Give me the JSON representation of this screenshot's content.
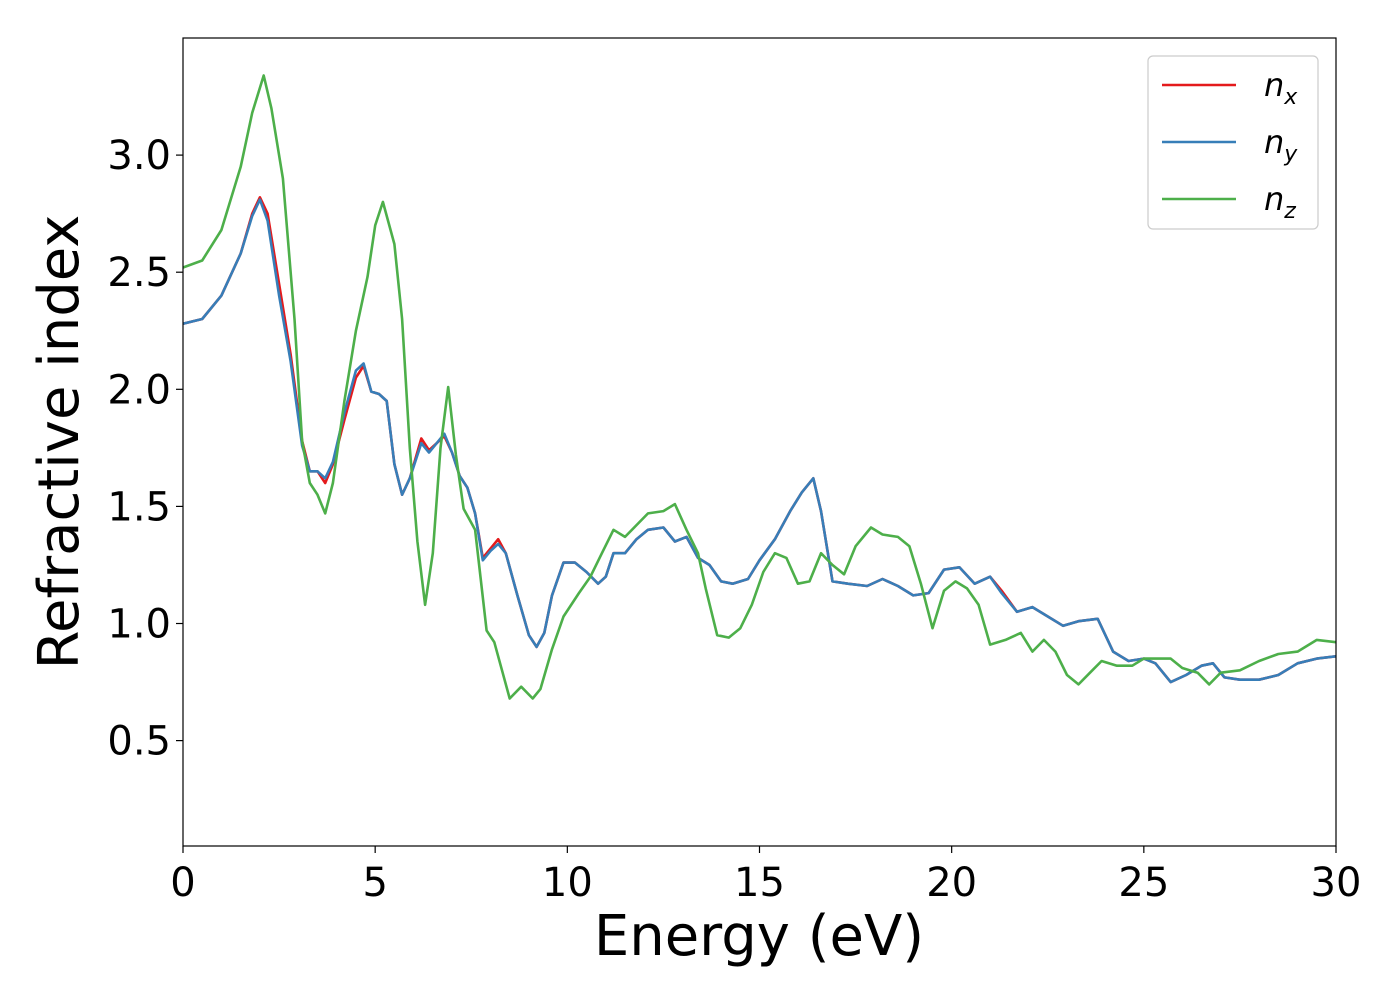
{
  "chart_data": {
    "type": "line",
    "title": "",
    "xlabel": "Energy (eV)",
    "ylabel": "Refractive index",
    "xlim": [
      0,
      30
    ],
    "ylim": [
      0.05,
      3.5
    ],
    "xticks": [
      0,
      5,
      10,
      15,
      20,
      25,
      30
    ],
    "xtick_labels": [
      "0",
      "5",
      "10",
      "15",
      "20",
      "25",
      "30"
    ],
    "yticks": [
      0.5,
      1.0,
      1.5,
      2.0,
      2.5,
      3.0
    ],
    "ytick_labels": [
      "0.5",
      "1.0",
      "1.5",
      "2.0",
      "2.5",
      "3.0"
    ],
    "grid": false,
    "legend_position": "top-right",
    "series": [
      {
        "name": "n_x",
        "label_base": "n",
        "label_sub": "x",
        "color": "#e41a1c",
        "points": [
          [
            0,
            2.28
          ],
          [
            0.5,
            2.3
          ],
          [
            1.0,
            2.4
          ],
          [
            1.5,
            2.58
          ],
          [
            1.8,
            2.75
          ],
          [
            2.0,
            2.82
          ],
          [
            2.2,
            2.75
          ],
          [
            2.5,
            2.45
          ],
          [
            2.8,
            2.15
          ],
          [
            3.1,
            1.78
          ],
          [
            3.3,
            1.65
          ],
          [
            3.5,
            1.65
          ],
          [
            3.7,
            1.6
          ],
          [
            3.9,
            1.68
          ],
          [
            4.2,
            1.87
          ],
          [
            4.5,
            2.05
          ],
          [
            4.7,
            2.1
          ],
          [
            4.9,
            1.99
          ],
          [
            5.1,
            1.98
          ],
          [
            5.3,
            1.95
          ],
          [
            5.5,
            1.68
          ],
          [
            5.7,
            1.55
          ],
          [
            5.9,
            1.62
          ],
          [
            6.2,
            1.79
          ],
          [
            6.4,
            1.74
          ],
          [
            6.6,
            1.77
          ],
          [
            6.8,
            1.8
          ],
          [
            7.0,
            1.73
          ],
          [
            7.2,
            1.63
          ],
          [
            7.4,
            1.58
          ],
          [
            7.6,
            1.47
          ],
          [
            7.8,
            1.28
          ],
          [
            8.0,
            1.32
          ],
          [
            8.2,
            1.36
          ],
          [
            8.4,
            1.3
          ],
          [
            8.7,
            1.12
          ],
          [
            9.0,
            0.95
          ],
          [
            9.2,
            0.9
          ],
          [
            9.4,
            0.96
          ],
          [
            9.6,
            1.12
          ],
          [
            9.9,
            1.26
          ],
          [
            10.2,
            1.26
          ],
          [
            10.5,
            1.22
          ],
          [
            10.8,
            1.17
          ],
          [
            11.0,
            1.2
          ],
          [
            11.2,
            1.3
          ],
          [
            11.5,
            1.3
          ],
          [
            11.8,
            1.36
          ],
          [
            12.1,
            1.4
          ],
          [
            12.5,
            1.41
          ],
          [
            12.8,
            1.35
          ],
          [
            13.1,
            1.37
          ],
          [
            13.4,
            1.28
          ],
          [
            13.7,
            1.25
          ],
          [
            14.0,
            1.18
          ],
          [
            14.3,
            1.17
          ],
          [
            14.7,
            1.19
          ],
          [
            15.0,
            1.27
          ],
          [
            15.4,
            1.36
          ],
          [
            15.8,
            1.48
          ],
          [
            16.1,
            1.56
          ],
          [
            16.4,
            1.62
          ],
          [
            16.6,
            1.48
          ],
          [
            16.9,
            1.18
          ],
          [
            17.3,
            1.17
          ],
          [
            17.8,
            1.16
          ],
          [
            18.2,
            1.19
          ],
          [
            18.6,
            1.16
          ],
          [
            19.0,
            1.12
          ],
          [
            19.4,
            1.13
          ],
          [
            19.8,
            1.23
          ],
          [
            20.2,
            1.24
          ],
          [
            20.6,
            1.17
          ],
          [
            21.0,
            1.2
          ],
          [
            21.3,
            1.14
          ],
          [
            21.7,
            1.05
          ],
          [
            22.1,
            1.07
          ],
          [
            22.5,
            1.03
          ],
          [
            22.9,
            0.99
          ],
          [
            23.3,
            1.01
          ],
          [
            23.8,
            1.02
          ],
          [
            24.2,
            0.88
          ],
          [
            24.6,
            0.84
          ],
          [
            25.0,
            0.85
          ],
          [
            25.3,
            0.83
          ],
          [
            25.7,
            0.75
          ],
          [
            26.1,
            0.78
          ],
          [
            26.5,
            0.82
          ],
          [
            26.8,
            0.83
          ],
          [
            27.1,
            0.77
          ],
          [
            27.5,
            0.76
          ],
          [
            28.0,
            0.76
          ],
          [
            28.5,
            0.78
          ],
          [
            29.0,
            0.83
          ],
          [
            29.5,
            0.85
          ],
          [
            30,
            0.86
          ]
        ]
      },
      {
        "name": "n_y",
        "label_base": "n",
        "label_sub": "y",
        "color": "#377eb8",
        "points": [
          [
            0,
            2.28
          ],
          [
            0.5,
            2.3
          ],
          [
            1.0,
            2.4
          ],
          [
            1.5,
            2.58
          ],
          [
            1.8,
            2.74
          ],
          [
            2.0,
            2.81
          ],
          [
            2.2,
            2.72
          ],
          [
            2.5,
            2.4
          ],
          [
            2.8,
            2.12
          ],
          [
            3.1,
            1.76
          ],
          [
            3.3,
            1.65
          ],
          [
            3.5,
            1.65
          ],
          [
            3.7,
            1.62
          ],
          [
            3.9,
            1.69
          ],
          [
            4.2,
            1.9
          ],
          [
            4.5,
            2.08
          ],
          [
            4.7,
            2.11
          ],
          [
            4.9,
            1.99
          ],
          [
            5.1,
            1.98
          ],
          [
            5.3,
            1.95
          ],
          [
            5.5,
            1.68
          ],
          [
            5.7,
            1.55
          ],
          [
            5.9,
            1.62
          ],
          [
            6.2,
            1.77
          ],
          [
            6.4,
            1.73
          ],
          [
            6.6,
            1.77
          ],
          [
            6.8,
            1.81
          ],
          [
            7.0,
            1.73
          ],
          [
            7.2,
            1.63
          ],
          [
            7.4,
            1.58
          ],
          [
            7.6,
            1.47
          ],
          [
            7.8,
            1.27
          ],
          [
            8.0,
            1.31
          ],
          [
            8.2,
            1.34
          ],
          [
            8.4,
            1.3
          ],
          [
            8.7,
            1.12
          ],
          [
            9.0,
            0.95
          ],
          [
            9.2,
            0.9
          ],
          [
            9.4,
            0.96
          ],
          [
            9.6,
            1.12
          ],
          [
            9.9,
            1.26
          ],
          [
            10.2,
            1.26
          ],
          [
            10.5,
            1.22
          ],
          [
            10.8,
            1.17
          ],
          [
            11.0,
            1.2
          ],
          [
            11.2,
            1.3
          ],
          [
            11.5,
            1.3
          ],
          [
            11.8,
            1.36
          ],
          [
            12.1,
            1.4
          ],
          [
            12.5,
            1.41
          ],
          [
            12.8,
            1.35
          ],
          [
            13.1,
            1.37
          ],
          [
            13.4,
            1.28
          ],
          [
            13.7,
            1.25
          ],
          [
            14.0,
            1.18
          ],
          [
            14.3,
            1.17
          ],
          [
            14.7,
            1.19
          ],
          [
            15.0,
            1.27
          ],
          [
            15.4,
            1.36
          ],
          [
            15.8,
            1.48
          ],
          [
            16.1,
            1.56
          ],
          [
            16.4,
            1.62
          ],
          [
            16.6,
            1.48
          ],
          [
            16.9,
            1.18
          ],
          [
            17.3,
            1.17
          ],
          [
            17.8,
            1.16
          ],
          [
            18.2,
            1.19
          ],
          [
            18.6,
            1.16
          ],
          [
            19.0,
            1.12
          ],
          [
            19.4,
            1.13
          ],
          [
            19.8,
            1.23
          ],
          [
            20.2,
            1.24
          ],
          [
            20.6,
            1.17
          ],
          [
            21.0,
            1.2
          ],
          [
            21.3,
            1.13
          ],
          [
            21.7,
            1.05
          ],
          [
            22.1,
            1.07
          ],
          [
            22.5,
            1.03
          ],
          [
            22.9,
            0.99
          ],
          [
            23.3,
            1.01
          ],
          [
            23.8,
            1.02
          ],
          [
            24.2,
            0.88
          ],
          [
            24.6,
            0.84
          ],
          [
            25.0,
            0.85
          ],
          [
            25.3,
            0.83
          ],
          [
            25.7,
            0.75
          ],
          [
            26.1,
            0.78
          ],
          [
            26.5,
            0.82
          ],
          [
            26.8,
            0.83
          ],
          [
            27.1,
            0.77
          ],
          [
            27.5,
            0.76
          ],
          [
            28.0,
            0.76
          ],
          [
            28.5,
            0.78
          ],
          [
            29.0,
            0.83
          ],
          [
            29.5,
            0.85
          ],
          [
            30,
            0.86
          ]
        ]
      },
      {
        "name": "n_z",
        "label_base": "n",
        "label_sub": "z",
        "color": "#4daf4a",
        "points": [
          [
            0,
            2.52
          ],
          [
            0.5,
            2.55
          ],
          [
            1.0,
            2.68
          ],
          [
            1.5,
            2.95
          ],
          [
            1.8,
            3.18
          ],
          [
            2.1,
            3.34
          ],
          [
            2.3,
            3.2
          ],
          [
            2.6,
            2.9
          ],
          [
            2.9,
            2.3
          ],
          [
            3.1,
            1.78
          ],
          [
            3.3,
            1.6
          ],
          [
            3.5,
            1.55
          ],
          [
            3.7,
            1.47
          ],
          [
            3.9,
            1.6
          ],
          [
            4.2,
            1.95
          ],
          [
            4.5,
            2.25
          ],
          [
            4.8,
            2.48
          ],
          [
            5.0,
            2.7
          ],
          [
            5.2,
            2.8
          ],
          [
            5.5,
            2.62
          ],
          [
            5.7,
            2.3
          ],
          [
            5.9,
            1.75
          ],
          [
            6.1,
            1.35
          ],
          [
            6.3,
            1.08
          ],
          [
            6.5,
            1.3
          ],
          [
            6.7,
            1.75
          ],
          [
            6.9,
            2.01
          ],
          [
            7.1,
            1.72
          ],
          [
            7.3,
            1.49
          ],
          [
            7.6,
            1.4
          ],
          [
            7.9,
            0.97
          ],
          [
            8.1,
            0.92
          ],
          [
            8.3,
            0.8
          ],
          [
            8.5,
            0.68
          ],
          [
            8.8,
            0.73
          ],
          [
            9.1,
            0.68
          ],
          [
            9.3,
            0.72
          ],
          [
            9.6,
            0.89
          ],
          [
            9.9,
            1.03
          ],
          [
            10.3,
            1.13
          ],
          [
            10.6,
            1.2
          ],
          [
            10.9,
            1.3
          ],
          [
            11.2,
            1.4
          ],
          [
            11.5,
            1.37
          ],
          [
            11.8,
            1.42
          ],
          [
            12.1,
            1.47
          ],
          [
            12.5,
            1.48
          ],
          [
            12.8,
            1.51
          ],
          [
            13.1,
            1.4
          ],
          [
            13.4,
            1.3
          ],
          [
            13.6,
            1.15
          ],
          [
            13.9,
            0.95
          ],
          [
            14.2,
            0.94
          ],
          [
            14.5,
            0.98
          ],
          [
            14.8,
            1.08
          ],
          [
            15.1,
            1.22
          ],
          [
            15.4,
            1.3
          ],
          [
            15.7,
            1.28
          ],
          [
            16.0,
            1.17
          ],
          [
            16.3,
            1.18
          ],
          [
            16.6,
            1.3
          ],
          [
            16.9,
            1.25
          ],
          [
            17.2,
            1.21
          ],
          [
            17.5,
            1.33
          ],
          [
            17.9,
            1.41
          ],
          [
            18.2,
            1.38
          ],
          [
            18.6,
            1.37
          ],
          [
            18.9,
            1.33
          ],
          [
            19.2,
            1.17
          ],
          [
            19.5,
            0.98
          ],
          [
            19.8,
            1.14
          ],
          [
            20.1,
            1.18
          ],
          [
            20.4,
            1.15
          ],
          [
            20.7,
            1.08
          ],
          [
            21.0,
            0.91
          ],
          [
            21.4,
            0.93
          ],
          [
            21.8,
            0.96
          ],
          [
            22.1,
            0.88
          ],
          [
            22.4,
            0.93
          ],
          [
            22.7,
            0.88
          ],
          [
            23.0,
            0.78
          ],
          [
            23.3,
            0.74
          ],
          [
            23.6,
            0.79
          ],
          [
            23.9,
            0.84
          ],
          [
            24.3,
            0.82
          ],
          [
            24.7,
            0.82
          ],
          [
            25.0,
            0.85
          ],
          [
            25.3,
            0.85
          ],
          [
            25.7,
            0.85
          ],
          [
            26.0,
            0.81
          ],
          [
            26.4,
            0.79
          ],
          [
            26.7,
            0.74
          ],
          [
            27.0,
            0.79
          ],
          [
            27.5,
            0.8
          ],
          [
            28.0,
            0.84
          ],
          [
            28.5,
            0.87
          ],
          [
            29.0,
            0.88
          ],
          [
            29.5,
            0.93
          ],
          [
            30,
            0.92
          ]
        ]
      }
    ]
  }
}
